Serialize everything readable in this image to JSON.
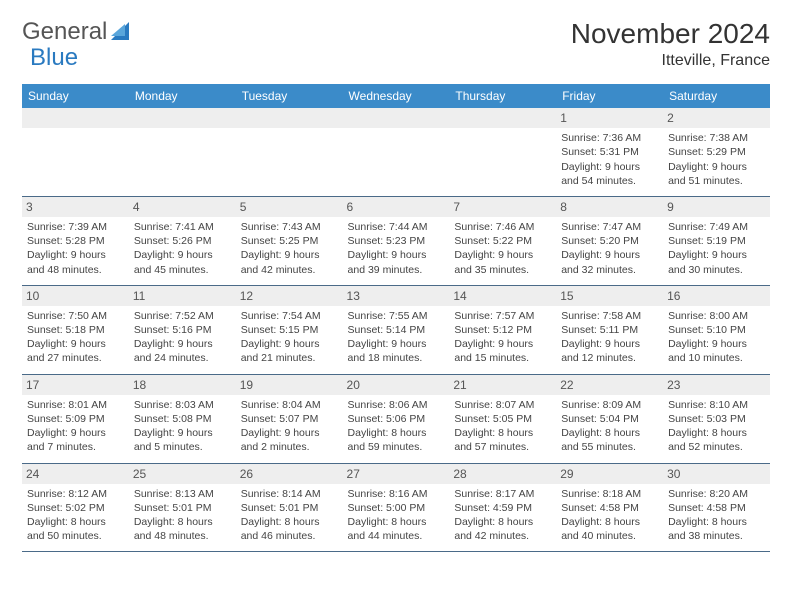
{
  "brand": {
    "part1": "General",
    "part2": "Blue"
  },
  "title": "November 2024",
  "location": "Itteville, France",
  "colors": {
    "header_bg": "#3b8bc9",
    "daynum_bg": "#eeeeee",
    "divider": "#4a6a88",
    "logo_blue": "#2a7ac0"
  },
  "day_headers": [
    "Sunday",
    "Monday",
    "Tuesday",
    "Wednesday",
    "Thursday",
    "Friday",
    "Saturday"
  ],
  "weeks": [
    [
      null,
      null,
      null,
      null,
      null,
      {
        "n": "1",
        "sr": "Sunrise: 7:36 AM",
        "ss": "Sunset: 5:31 PM",
        "d1": "Daylight: 9 hours",
        "d2": "and 54 minutes."
      },
      {
        "n": "2",
        "sr": "Sunrise: 7:38 AM",
        "ss": "Sunset: 5:29 PM",
        "d1": "Daylight: 9 hours",
        "d2": "and 51 minutes."
      }
    ],
    [
      {
        "n": "3",
        "sr": "Sunrise: 7:39 AM",
        "ss": "Sunset: 5:28 PM",
        "d1": "Daylight: 9 hours",
        "d2": "and 48 minutes."
      },
      {
        "n": "4",
        "sr": "Sunrise: 7:41 AM",
        "ss": "Sunset: 5:26 PM",
        "d1": "Daylight: 9 hours",
        "d2": "and 45 minutes."
      },
      {
        "n": "5",
        "sr": "Sunrise: 7:43 AM",
        "ss": "Sunset: 5:25 PM",
        "d1": "Daylight: 9 hours",
        "d2": "and 42 minutes."
      },
      {
        "n": "6",
        "sr": "Sunrise: 7:44 AM",
        "ss": "Sunset: 5:23 PM",
        "d1": "Daylight: 9 hours",
        "d2": "and 39 minutes."
      },
      {
        "n": "7",
        "sr": "Sunrise: 7:46 AM",
        "ss": "Sunset: 5:22 PM",
        "d1": "Daylight: 9 hours",
        "d2": "and 35 minutes."
      },
      {
        "n": "8",
        "sr": "Sunrise: 7:47 AM",
        "ss": "Sunset: 5:20 PM",
        "d1": "Daylight: 9 hours",
        "d2": "and 32 minutes."
      },
      {
        "n": "9",
        "sr": "Sunrise: 7:49 AM",
        "ss": "Sunset: 5:19 PM",
        "d1": "Daylight: 9 hours",
        "d2": "and 30 minutes."
      }
    ],
    [
      {
        "n": "10",
        "sr": "Sunrise: 7:50 AM",
        "ss": "Sunset: 5:18 PM",
        "d1": "Daylight: 9 hours",
        "d2": "and 27 minutes."
      },
      {
        "n": "11",
        "sr": "Sunrise: 7:52 AM",
        "ss": "Sunset: 5:16 PM",
        "d1": "Daylight: 9 hours",
        "d2": "and 24 minutes."
      },
      {
        "n": "12",
        "sr": "Sunrise: 7:54 AM",
        "ss": "Sunset: 5:15 PM",
        "d1": "Daylight: 9 hours",
        "d2": "and 21 minutes."
      },
      {
        "n": "13",
        "sr": "Sunrise: 7:55 AM",
        "ss": "Sunset: 5:14 PM",
        "d1": "Daylight: 9 hours",
        "d2": "and 18 minutes."
      },
      {
        "n": "14",
        "sr": "Sunrise: 7:57 AM",
        "ss": "Sunset: 5:12 PM",
        "d1": "Daylight: 9 hours",
        "d2": "and 15 minutes."
      },
      {
        "n": "15",
        "sr": "Sunrise: 7:58 AM",
        "ss": "Sunset: 5:11 PM",
        "d1": "Daylight: 9 hours",
        "d2": "and 12 minutes."
      },
      {
        "n": "16",
        "sr": "Sunrise: 8:00 AM",
        "ss": "Sunset: 5:10 PM",
        "d1": "Daylight: 9 hours",
        "d2": "and 10 minutes."
      }
    ],
    [
      {
        "n": "17",
        "sr": "Sunrise: 8:01 AM",
        "ss": "Sunset: 5:09 PM",
        "d1": "Daylight: 9 hours",
        "d2": "and 7 minutes."
      },
      {
        "n": "18",
        "sr": "Sunrise: 8:03 AM",
        "ss": "Sunset: 5:08 PM",
        "d1": "Daylight: 9 hours",
        "d2": "and 5 minutes."
      },
      {
        "n": "19",
        "sr": "Sunrise: 8:04 AM",
        "ss": "Sunset: 5:07 PM",
        "d1": "Daylight: 9 hours",
        "d2": "and 2 minutes."
      },
      {
        "n": "20",
        "sr": "Sunrise: 8:06 AM",
        "ss": "Sunset: 5:06 PM",
        "d1": "Daylight: 8 hours",
        "d2": "and 59 minutes."
      },
      {
        "n": "21",
        "sr": "Sunrise: 8:07 AM",
        "ss": "Sunset: 5:05 PM",
        "d1": "Daylight: 8 hours",
        "d2": "and 57 minutes."
      },
      {
        "n": "22",
        "sr": "Sunrise: 8:09 AM",
        "ss": "Sunset: 5:04 PM",
        "d1": "Daylight: 8 hours",
        "d2": "and 55 minutes."
      },
      {
        "n": "23",
        "sr": "Sunrise: 8:10 AM",
        "ss": "Sunset: 5:03 PM",
        "d1": "Daylight: 8 hours",
        "d2": "and 52 minutes."
      }
    ],
    [
      {
        "n": "24",
        "sr": "Sunrise: 8:12 AM",
        "ss": "Sunset: 5:02 PM",
        "d1": "Daylight: 8 hours",
        "d2": "and 50 minutes."
      },
      {
        "n": "25",
        "sr": "Sunrise: 8:13 AM",
        "ss": "Sunset: 5:01 PM",
        "d1": "Daylight: 8 hours",
        "d2": "and 48 minutes."
      },
      {
        "n": "26",
        "sr": "Sunrise: 8:14 AM",
        "ss": "Sunset: 5:01 PM",
        "d1": "Daylight: 8 hours",
        "d2": "and 46 minutes."
      },
      {
        "n": "27",
        "sr": "Sunrise: 8:16 AM",
        "ss": "Sunset: 5:00 PM",
        "d1": "Daylight: 8 hours",
        "d2": "and 44 minutes."
      },
      {
        "n": "28",
        "sr": "Sunrise: 8:17 AM",
        "ss": "Sunset: 4:59 PM",
        "d1": "Daylight: 8 hours",
        "d2": "and 42 minutes."
      },
      {
        "n": "29",
        "sr": "Sunrise: 8:18 AM",
        "ss": "Sunset: 4:58 PM",
        "d1": "Daylight: 8 hours",
        "d2": "and 40 minutes."
      },
      {
        "n": "30",
        "sr": "Sunrise: 8:20 AM",
        "ss": "Sunset: 4:58 PM",
        "d1": "Daylight: 8 hours",
        "d2": "and 38 minutes."
      }
    ]
  ]
}
